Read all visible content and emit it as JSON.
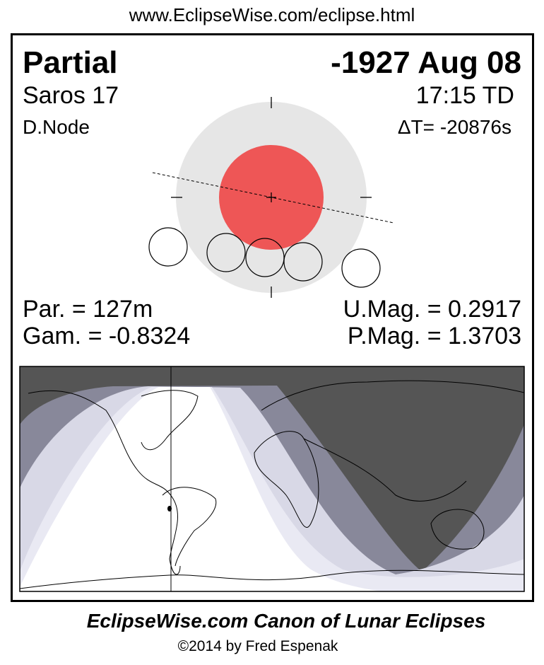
{
  "header_url": "www.EclipseWise.com/eclipse.html",
  "eclipse": {
    "type": "Partial",
    "date": "-1927 Aug 08",
    "saros": "Saros  17",
    "time": "17:15 TD",
    "node": "D.Node",
    "delta_t": "ΔT= -20876s",
    "partial_duration": "Par. = 127m",
    "gamma": "Gam. = -0.8324",
    "umbral_magnitude": "U.Mag. = 0.2917",
    "penumbral_magnitude": "P.Mag. = 1.3703"
  },
  "colors": {
    "penumbra": "#e6e6e6",
    "umbra": "#ee5656",
    "night": "#555555",
    "map_band_mid": "#88889a",
    "map_band_light": "#d8d8e6",
    "map_band_lighter": "#e9e9f3"
  },
  "footer": {
    "title": "EclipseWise.com Canon of Lunar Eclipses",
    "copyright": "©2014 by Fred Espenak"
  }
}
